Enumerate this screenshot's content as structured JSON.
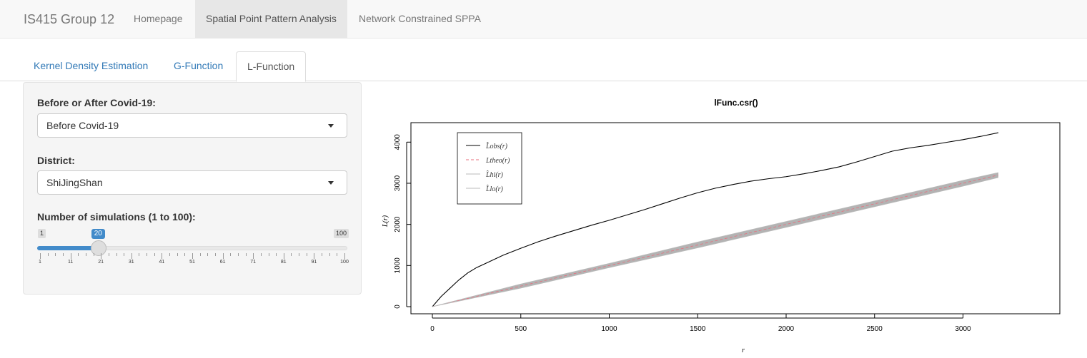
{
  "navbar": {
    "brand": "IS415 Group 12",
    "items": [
      {
        "label": "Homepage",
        "active": false
      },
      {
        "label": "Spatial Point Pattern Analysis",
        "active": true
      },
      {
        "label": "Network Constrained SPPA",
        "active": false
      }
    ]
  },
  "tabs": [
    {
      "label": "Kernel Density Estimation",
      "active": false
    },
    {
      "label": "G-Function",
      "active": false
    },
    {
      "label": "L-Function",
      "active": true
    }
  ],
  "sidebar": {
    "period_label": "Before or After Covid-19:",
    "period_value": "Before Covid-19",
    "district_label": "District:",
    "district_value": "ShiJingShan",
    "sims_label": "Number of simulations (1 to 100):",
    "slider": {
      "min": 1,
      "max": 100,
      "value": 20,
      "min_text": "1",
      "max_text": "100",
      "value_text": "20",
      "tick_labels": [
        "1",
        "11",
        "21",
        "31",
        "41",
        "51",
        "61",
        "71",
        "81",
        "91",
        "100"
      ]
    }
  },
  "chart_data": {
    "type": "line",
    "title": "lFunc.csr()",
    "xlabel": "r",
    "ylabel": "L(r)",
    "xlim": [
      0,
      3200
    ],
    "ylim": [
      0,
      4300
    ],
    "x_ticks": [
      0,
      500,
      1000,
      1500,
      2000,
      2500,
      3000
    ],
    "y_ticks": [
      0,
      1000,
      2000,
      3000,
      4000
    ],
    "legend_position": "top-left",
    "series": [
      {
        "name": "L̂obs(r)",
        "color": "#000000",
        "style": "solid",
        "x": [
          0,
          50,
          100,
          150,
          200,
          250,
          300,
          400,
          500,
          600,
          700,
          800,
          900,
          1000,
          1100,
          1200,
          1300,
          1400,
          1500,
          1600,
          1700,
          1800,
          1900,
          2000,
          2100,
          2200,
          2300,
          2400,
          2500,
          2600,
          2700,
          2800,
          2900,
          3000,
          3100,
          3200
        ],
        "y": [
          0,
          250,
          450,
          650,
          820,
          950,
          1050,
          1250,
          1420,
          1580,
          1720,
          1850,
          1980,
          2100,
          2230,
          2360,
          2500,
          2640,
          2770,
          2880,
          2970,
          3050,
          3110,
          3160,
          3230,
          3310,
          3400,
          3520,
          3650,
          3780,
          3860,
          3920,
          3990,
          4060,
          4140,
          4230
        ]
      },
      {
        "name": "Ltheo(r)",
        "color": "#e86f7e",
        "style": "dashed",
        "x": [
          0,
          3200
        ],
        "y": [
          0,
          3200
        ]
      },
      {
        "name": "L̂hi(r)",
        "color": "#bbbbbb",
        "style": "solid",
        "x": [
          0,
          500,
          1000,
          1500,
          2000,
          2500,
          3000,
          3200
        ],
        "y": [
          0,
          550,
          1050,
          1570,
          2070,
          2570,
          3070,
          3260
        ]
      },
      {
        "name": "L̂lo(r)",
        "color": "#bbbbbb",
        "style": "solid",
        "x": [
          0,
          500,
          1000,
          1500,
          2000,
          2500,
          3000,
          3200
        ],
        "y": [
          0,
          450,
          950,
          1430,
          1930,
          2430,
          2930,
          3140
        ]
      }
    ],
    "envelope_color": "#b3b3b3"
  }
}
